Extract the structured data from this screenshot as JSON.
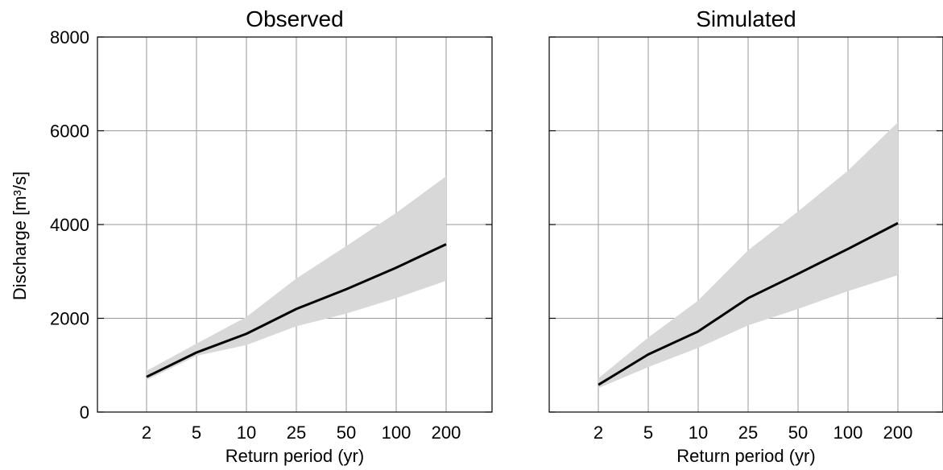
{
  "chart_data": [
    {
      "type": "line",
      "title": "Observed",
      "xlabel": "Return period (yr)",
      "ylabel": "Discharge [m³/s]",
      "x_ticks": [
        "2",
        "5",
        "10",
        "25",
        "50",
        "100",
        "200"
      ],
      "y_ticks": [
        "0",
        "2000",
        "4000",
        "6000",
        "8000"
      ],
      "ylim": [
        0,
        8000
      ],
      "grid": true,
      "series": [
        {
          "values": [
            750,
            1270,
            1670,
            2200,
            2620,
            3080,
            3580
          ]
        }
      ],
      "band": {
        "lower": [
          680,
          1200,
          1430,
          1830,
          2100,
          2430,
          2800
        ],
        "upper": [
          880,
          1460,
          2030,
          2850,
          3540,
          4250,
          5030
        ]
      },
      "colors": {
        "line": "#000000",
        "band": "#d8d8d8"
      }
    },
    {
      "type": "line",
      "title": "Simulated",
      "xlabel": "Return period (yr)",
      "ylabel": "",
      "x_ticks": [
        "2",
        "5",
        "10",
        "25",
        "50",
        "100",
        "200"
      ],
      "y_ticks": [],
      "ylim": [
        0,
        8000
      ],
      "grid": true,
      "series": [
        {
          "values": [
            580,
            1230,
            1720,
            2430,
            2950,
            3480,
            4030
          ]
        }
      ],
      "band": {
        "lower": [
          510,
          960,
          1370,
          1850,
          2200,
          2580,
          2920
        ],
        "upper": [
          720,
          1590,
          2380,
          3450,
          4280,
          5150,
          6180
        ]
      },
      "colors": {
        "line": "#000000",
        "band": "#d8d8d8"
      }
    }
  ]
}
